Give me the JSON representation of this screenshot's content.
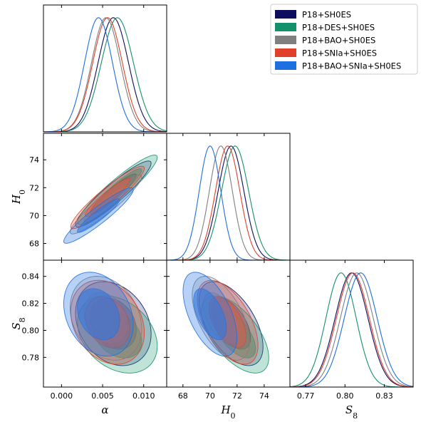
{
  "chart_data": {
    "type": "triangle-corner",
    "parameters": [
      {
        "id": "alpha",
        "label": "α",
        "sub": "",
        "range": [
          -0.0022,
          0.0128
        ],
        "ticks": [
          0.0,
          0.005,
          0.01
        ],
        "tick_labels": [
          "0.000",
          "0.005",
          "0.010"
        ]
      },
      {
        "id": "H0",
        "label": "H",
        "sub": "0",
        "range": [
          66.8,
          75.9
        ],
        "ticks": [
          68,
          70,
          72,
          74
        ],
        "tick_labels": [
          "68",
          "70",
          "72",
          "74"
        ]
      },
      {
        "id": "S8",
        "label": "S",
        "sub": "8",
        "range": [
          0.758,
          0.852
        ],
        "ticks": [
          0.77,
          0.8,
          0.83
        ],
        "tick_labels": [
          "0.77",
          "0.80",
          "0.83"
        ],
        "ticks_y": [
          0.78,
          0.8,
          0.82,
          0.84
        ],
        "tick_labels_y": [
          "0.78",
          "0.80",
          "0.82",
          "0.84"
        ]
      }
    ],
    "legend_position": "top-right",
    "series": [
      {
        "name": "P18+SH0ES",
        "color": "#0d0d5e",
        "fill": "#2a2a7a",
        "fill_opacity": 0.35,
        "alpha": {
          "mean": 0.0063,
          "sd": 0.00185
        },
        "H0": {
          "mean": 71.55,
          "sd": 0.95
        },
        "S8": {
          "mean": 0.805,
          "sd": 0.0125
        },
        "corr": {
          "alpha_H0": 0.93,
          "alpha_S8": -0.25,
          "H0_S8": -0.55
        }
      },
      {
        "name": "P18+DES+SH0ES",
        "color": "#14906a",
        "fill": "#1e9e72",
        "fill_opacity": 0.38,
        "alpha": {
          "mean": 0.0068,
          "sd": 0.00195
        },
        "H0": {
          "mean": 71.85,
          "sd": 1.0
        },
        "S8": {
          "mean": 0.797,
          "sd": 0.0115
        },
        "corr": {
          "alpha_H0": 0.93,
          "alpha_S8": -0.3,
          "H0_S8": -0.6
        }
      },
      {
        "name": "P18+BAO+SH0ES",
        "color": "#808080",
        "fill": "#9a9a9a",
        "fill_opacity": 0.35,
        "alpha": {
          "mean": 0.0054,
          "sd": 0.00175
        },
        "H0": {
          "mean": 70.8,
          "sd": 0.85
        },
        "S8": {
          "mean": 0.809,
          "sd": 0.0125
        },
        "corr": {
          "alpha_H0": 0.93,
          "alpha_S8": -0.25,
          "H0_S8": -0.55
        }
      },
      {
        "name": "P18+SNIa+SH0ES",
        "color": "#e0402a",
        "fill": "#e65540",
        "fill_opacity": 0.38,
        "alpha": {
          "mean": 0.0056,
          "sd": 0.0018
        },
        "H0": {
          "mean": 71.3,
          "sd": 0.9
        },
        "S8": {
          "mean": 0.806,
          "sd": 0.0125
        },
        "corr": {
          "alpha_H0": 0.93,
          "alpha_S8": -0.25,
          "H0_S8": -0.55
        }
      },
      {
        "name": "P18+BAO+SNIa+SH0ES",
        "color": "#1e6fe0",
        "fill": "#2b78e4",
        "fill_opacity": 0.45,
        "alpha": {
          "mean": 0.0045,
          "sd": 0.0017
        },
        "H0": {
          "mean": 70.0,
          "sd": 0.8
        },
        "S8": {
          "mean": 0.812,
          "sd": 0.0125
        },
        "corr": {
          "alpha_H0": 0.93,
          "alpha_S8": -0.25,
          "H0_S8": -0.55
        }
      }
    ]
  }
}
